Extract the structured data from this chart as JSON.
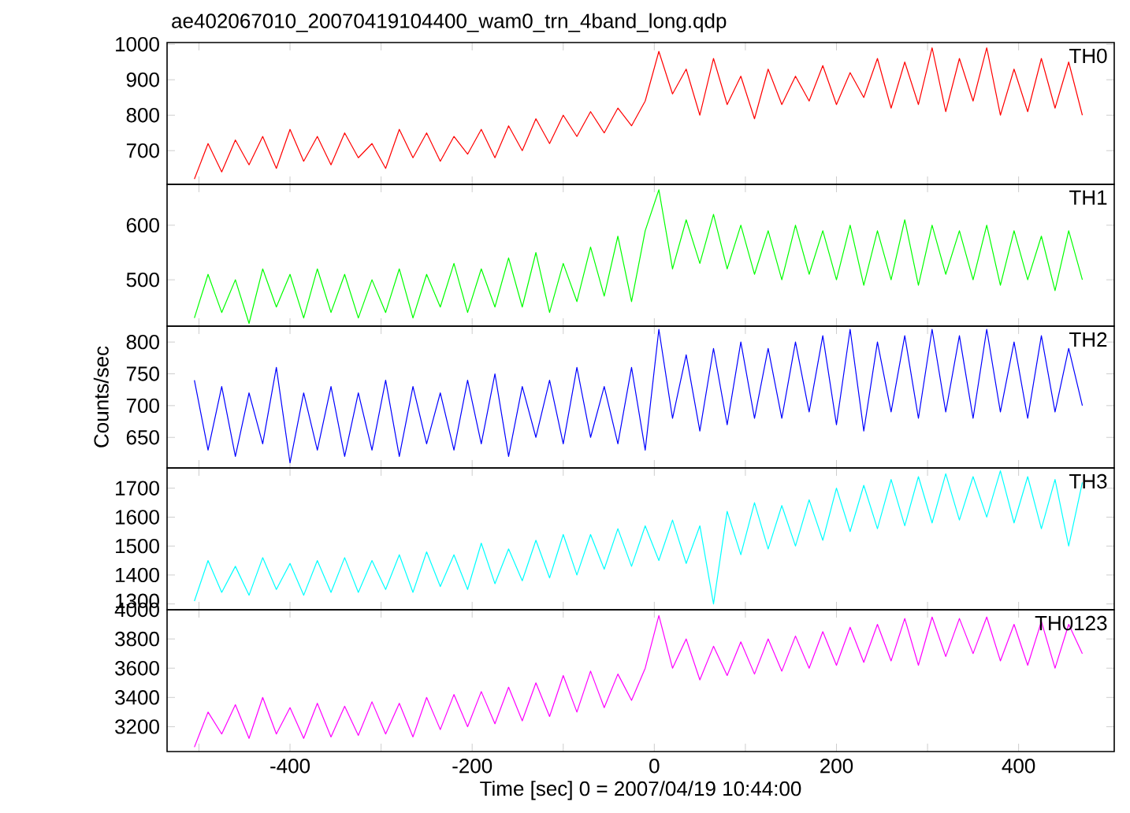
{
  "chart_data": [
    {
      "type": "line",
      "title": "ae402067010_20070419104400_wam0_trn_4band_long.qdp",
      "x": [
        -505,
        -490,
        -475,
        -460,
        -445,
        -430,
        -415,
        -400,
        -385,
        -370,
        -355,
        -340,
        -325,
        -310,
        -295,
        -280,
        -265,
        -250,
        -235,
        -220,
        -205,
        -190,
        -175,
        -160,
        -145,
        -130,
        -115,
        -100,
        -85,
        -70,
        -55,
        -40,
        -25,
        -10,
        5,
        20,
        35,
        50,
        65,
        80,
        95,
        110,
        125,
        140,
        155,
        170,
        185,
        200,
        215,
        230,
        245,
        260,
        275,
        290,
        305,
        320,
        335,
        350,
        365,
        380,
        395,
        410,
        425,
        440,
        455,
        470
      ],
      "xlim": [
        -535,
        505
      ],
      "ylim": [
        605,
        1005
      ],
      "xticks": [
        {
          "value": -500,
          "label": null
        },
        -400,
        {
          "value": -300,
          "label": null
        },
        -200,
        {
          "value": -100,
          "label": null
        },
        0,
        {
          "value": 100,
          "label": null
        },
        200,
        {
          "value": 300,
          "label": null
        },
        400
      ],
      "yticks": [
        700,
        800,
        900,
        1000
      ],
      "tick_labels": "y",
      "legend": false,
      "line_style": "solid",
      "series": [
        {
          "name": "TH0",
          "color": "#ff0000",
          "values": [
            620,
            720,
            640,
            730,
            660,
            740,
            650,
            760,
            670,
            740,
            660,
            750,
            680,
            720,
            650,
            760,
            680,
            750,
            670,
            740,
            690,
            760,
            680,
            770,
            700,
            790,
            720,
            800,
            740,
            810,
            750,
            820,
            770,
            840,
            980,
            860,
            930,
            800,
            960,
            830,
            910,
            790,
            930,
            830,
            910,
            840,
            940,
            830,
            920,
            850,
            960,
            820,
            950,
            830,
            990,
            810,
            960,
            840,
            990,
            800,
            930,
            810,
            960,
            820,
            950,
            800
          ]
        }
      ]
    },
    {
      "type": "line",
      "x": [
        -505,
        -490,
        -475,
        -460,
        -445,
        -430,
        -415,
        -400,
        -385,
        -370,
        -355,
        -340,
        -325,
        -310,
        -295,
        -280,
        -265,
        -250,
        -235,
        -220,
        -205,
        -190,
        -175,
        -160,
        -145,
        -130,
        -115,
        -100,
        -85,
        -70,
        -55,
        -40,
        -25,
        -10,
        5,
        20,
        35,
        50,
        65,
        80,
        95,
        110,
        125,
        140,
        155,
        170,
        185,
        200,
        215,
        230,
        245,
        260,
        275,
        290,
        305,
        320,
        335,
        350,
        365,
        380,
        395,
        410,
        425,
        440,
        455,
        470
      ],
      "xlim": [
        -535,
        505
      ],
      "ylim": [
        415,
        675
      ],
      "xticks": [
        {
          "value": -500,
          "label": null
        },
        -400,
        {
          "value": -300,
          "label": null
        },
        -200,
        {
          "value": -100,
          "label": null
        },
        0,
        {
          "value": 100,
          "label": null
        },
        200,
        {
          "value": 300,
          "label": null
        },
        400
      ],
      "yticks": [
        500,
        600
      ],
      "tick_labels": "y",
      "legend": false,
      "line_style": "solid",
      "series": [
        {
          "name": "TH1",
          "color": "#00ff00",
          "values": [
            430,
            510,
            440,
            500,
            420,
            520,
            450,
            510,
            430,
            520,
            440,
            510,
            430,
            500,
            440,
            520,
            430,
            510,
            450,
            530,
            440,
            520,
            450,
            540,
            450,
            550,
            440,
            530,
            460,
            560,
            470,
            580,
            460,
            590,
            665,
            520,
            610,
            530,
            620,
            520,
            600,
            510,
            590,
            500,
            600,
            510,
            590,
            500,
            600,
            490,
            590,
            500,
            610,
            490,
            600,
            510,
            590,
            500,
            600,
            490,
            590,
            500,
            580,
            480,
            590,
            500
          ]
        }
      ]
    },
    {
      "type": "line",
      "ylabel": "Counts/sec",
      "x": [
        -505,
        -490,
        -475,
        -460,
        -445,
        -430,
        -415,
        -400,
        -385,
        -370,
        -355,
        -340,
        -325,
        -310,
        -295,
        -280,
        -265,
        -250,
        -235,
        -220,
        -205,
        -190,
        -175,
        -160,
        -145,
        -130,
        -115,
        -100,
        -85,
        -70,
        -55,
        -40,
        -25,
        -10,
        5,
        20,
        35,
        50,
        65,
        80,
        95,
        110,
        125,
        140,
        155,
        170,
        185,
        200,
        215,
        230,
        245,
        260,
        275,
        290,
        305,
        320,
        335,
        350,
        365,
        380,
        395,
        410,
        425,
        440,
        455,
        470
      ],
      "xlim": [
        -535,
        505
      ],
      "ylim": [
        602,
        825
      ],
      "xticks": [
        {
          "value": -500,
          "label": null
        },
        -400,
        {
          "value": -300,
          "label": null
        },
        -200,
        {
          "value": -100,
          "label": null
        },
        0,
        {
          "value": 100,
          "label": null
        },
        200,
        {
          "value": 300,
          "label": null
        },
        400
      ],
      "yticks": [
        650,
        700,
        750,
        800
      ],
      "tick_labels": "y",
      "legend": false,
      "line_style": "solid",
      "series": [
        {
          "name": "TH2",
          "color": "#0000ff",
          "values": [
            740,
            630,
            730,
            620,
            720,
            640,
            760,
            610,
            720,
            630,
            730,
            620,
            720,
            630,
            740,
            620,
            730,
            640,
            720,
            630,
            740,
            640,
            750,
            620,
            730,
            650,
            740,
            640,
            760,
            650,
            730,
            640,
            760,
            630,
            820,
            680,
            780,
            660,
            790,
            670,
            800,
            680,
            790,
            680,
            800,
            690,
            810,
            670,
            820,
            660,
            800,
            690,
            810,
            680,
            820,
            690,
            810,
            680,
            820,
            690,
            800,
            680,
            810,
            690,
            790,
            700
          ]
        }
      ]
    },
    {
      "type": "line",
      "x": [
        -505,
        -490,
        -475,
        -460,
        -445,
        -430,
        -415,
        -400,
        -385,
        -370,
        -355,
        -340,
        -325,
        -310,
        -295,
        -280,
        -265,
        -250,
        -235,
        -220,
        -205,
        -190,
        -175,
        -160,
        -145,
        -130,
        -115,
        -100,
        -85,
        -70,
        -55,
        -40,
        -25,
        -10,
        5,
        20,
        35,
        50,
        65,
        80,
        95,
        110,
        125,
        140,
        155,
        170,
        185,
        200,
        215,
        230,
        245,
        260,
        275,
        290,
        305,
        320,
        335,
        350,
        365,
        380,
        395,
        410,
        425,
        440,
        455,
        470
      ],
      "xlim": [
        -535,
        505
      ],
      "ylim": [
        1280,
        1770
      ],
      "xticks": [
        {
          "value": -500,
          "label": null
        },
        -400,
        {
          "value": -300,
          "label": null
        },
        -200,
        {
          "value": -100,
          "label": null
        },
        0,
        {
          "value": 100,
          "label": null
        },
        200,
        {
          "value": 300,
          "label": null
        },
        400
      ],
      "yticks": [
        1300,
        1400,
        1500,
        1600,
        1700
      ],
      "tick_labels": "y",
      "legend": false,
      "line_style": "solid",
      "series": [
        {
          "name": "TH3",
          "color": "#00ffff",
          "values": [
            1310,
            1450,
            1340,
            1430,
            1330,
            1460,
            1350,
            1440,
            1330,
            1450,
            1340,
            1460,
            1340,
            1450,
            1350,
            1470,
            1340,
            1480,
            1360,
            1470,
            1350,
            1510,
            1370,
            1490,
            1380,
            1520,
            1390,
            1540,
            1400,
            1540,
            1420,
            1560,
            1430,
            1570,
            1450,
            1590,
            1440,
            1570,
            1300,
            1620,
            1470,
            1650,
            1490,
            1640,
            1500,
            1660,
            1520,
            1700,
            1550,
            1710,
            1560,
            1730,
            1570,
            1740,
            1580,
            1750,
            1590,
            1740,
            1600,
            1760,
            1580,
            1740,
            1560,
            1730,
            1500,
            1720
          ]
        }
      ]
    },
    {
      "type": "line",
      "xlabel": "Time [sec] 0 = 2007/04/19 10:44:00",
      "x": [
        -505,
        -490,
        -475,
        -460,
        -445,
        -430,
        -415,
        -400,
        -385,
        -370,
        -355,
        -340,
        -325,
        -310,
        -295,
        -280,
        -265,
        -250,
        -235,
        -220,
        -205,
        -190,
        -175,
        -160,
        -145,
        -130,
        -115,
        -100,
        -85,
        -70,
        -55,
        -40,
        -25,
        -10,
        5,
        20,
        35,
        50,
        65,
        80,
        95,
        110,
        125,
        140,
        155,
        170,
        185,
        200,
        215,
        230,
        245,
        260,
        275,
        290,
        305,
        320,
        335,
        350,
        365,
        380,
        395,
        410,
        425,
        440,
        455,
        470
      ],
      "xlim": [
        -535,
        505
      ],
      "ylim": [
        3030,
        4000
      ],
      "xticks": [
        {
          "value": -500,
          "label": null
        },
        -400,
        {
          "value": -300,
          "label": null
        },
        -200,
        {
          "value": -100,
          "label": null
        },
        0,
        {
          "value": 100,
          "label": null
        },
        200,
        {
          "value": 300,
          "label": null
        },
        400
      ],
      "yticks": [
        3200,
        3400,
        3600,
        3800,
        4000
      ],
      "legend": false,
      "line_style": "solid",
      "series": [
        {
          "name": "TH0123",
          "color": "#ff00ff",
          "values": [
            3060,
            3300,
            3150,
            3350,
            3120,
            3400,
            3150,
            3330,
            3120,
            3360,
            3130,
            3340,
            3140,
            3370,
            3150,
            3360,
            3130,
            3400,
            3180,
            3420,
            3200,
            3440,
            3220,
            3470,
            3240,
            3500,
            3270,
            3550,
            3300,
            3580,
            3330,
            3560,
            3380,
            3600,
            3960,
            3600,
            3800,
            3520,
            3750,
            3550,
            3780,
            3560,
            3800,
            3580,
            3820,
            3600,
            3850,
            3620,
            3880,
            3640,
            3900,
            3650,
            3940,
            3620,
            3950,
            3680,
            3940,
            3700,
            3950,
            3650,
            3900,
            3620,
            3920,
            3600,
            3900,
            3700
          ]
        }
      ]
    }
  ]
}
